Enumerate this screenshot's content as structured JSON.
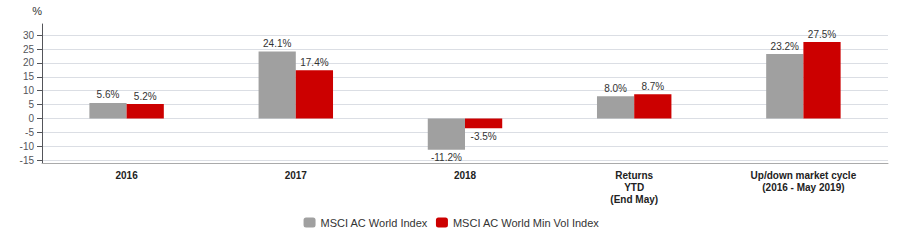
{
  "chart_data": {
    "type": "bar",
    "ylabel": "%",
    "categories": [
      "2016",
      "2017",
      "2018",
      "Returns\nYTD\n(End May)",
      "Up/down market cycle\n(2016 - May 2019)"
    ],
    "series": [
      {
        "name": "MSCI AC World Index",
        "color": "#a0a0a0",
        "values": [
          5.6,
          24.1,
          -11.2,
          8.0,
          23.2
        ],
        "value_labels": [
          "5.6%",
          "24.1%",
          "-11.2%",
          "8.0%",
          "23.2%"
        ]
      },
      {
        "name": "MSCI AC World Min Vol Index",
        "color": "#cc0000",
        "values": [
          5.2,
          17.4,
          -3.5,
          8.7,
          27.5
        ],
        "value_labels": [
          "5.2%",
          "17.4%",
          "-3.5%",
          "8.7%",
          "27.5%"
        ]
      }
    ],
    "ylim": [
      -16,
      34
    ],
    "yticks": [
      -15,
      -10,
      -5,
      0,
      5,
      10,
      15,
      20,
      25,
      30
    ],
    "grid": true,
    "legend": "bottom",
    "data_labels": true
  }
}
